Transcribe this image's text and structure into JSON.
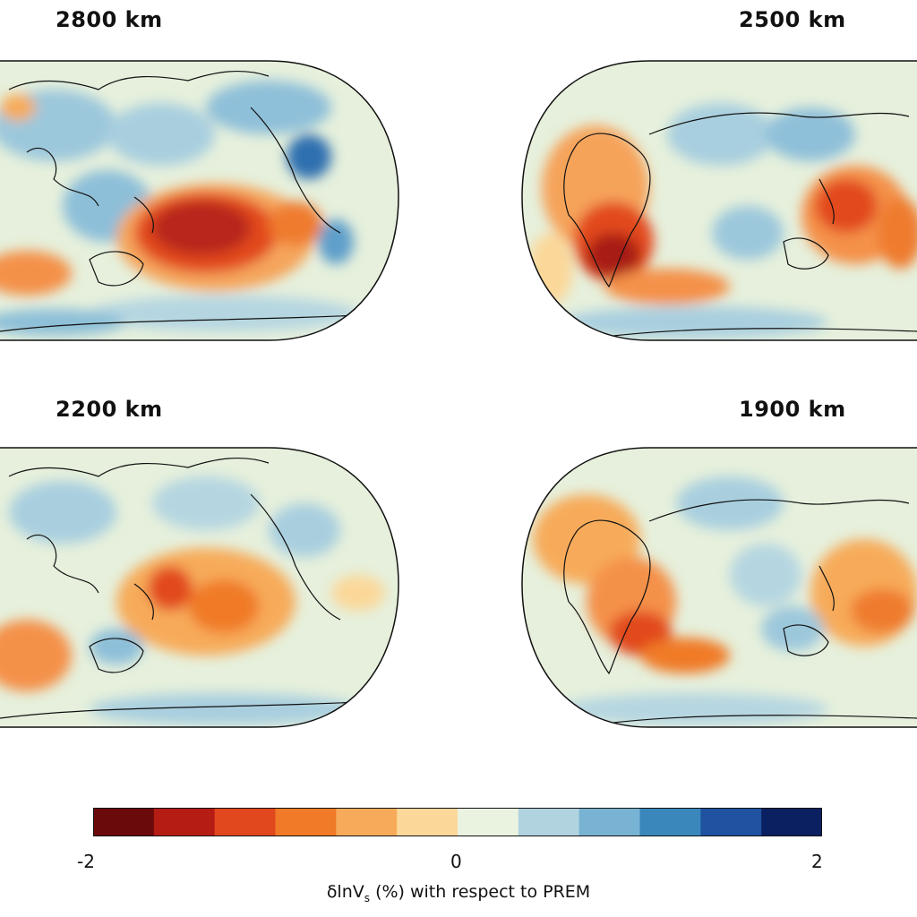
{
  "panels": [
    {
      "title": "2800 km",
      "id": "p2800"
    },
    {
      "title": "2500 km",
      "id": "p2500"
    },
    {
      "title": "2200 km",
      "id": "p2200"
    },
    {
      "title": "1900 km",
      "id": "p1900"
    }
  ],
  "colorbar": {
    "min_label": "-2",
    "mid_label": "0",
    "max_label": "2",
    "title_prefix": "δlnV",
    "title_sub": "s",
    "title_suffix": " (%) with respect to PREM",
    "colors": [
      "#6b0a0a",
      "#b41c14",
      "#e2481e",
      "#f07a28",
      "#f7ab5a",
      "#fbd89a",
      "#e9f3df",
      "#b0d3df",
      "#78b3d3",
      "#3a87bc",
      "#1f52a0",
      "#0b2060"
    ]
  }
}
